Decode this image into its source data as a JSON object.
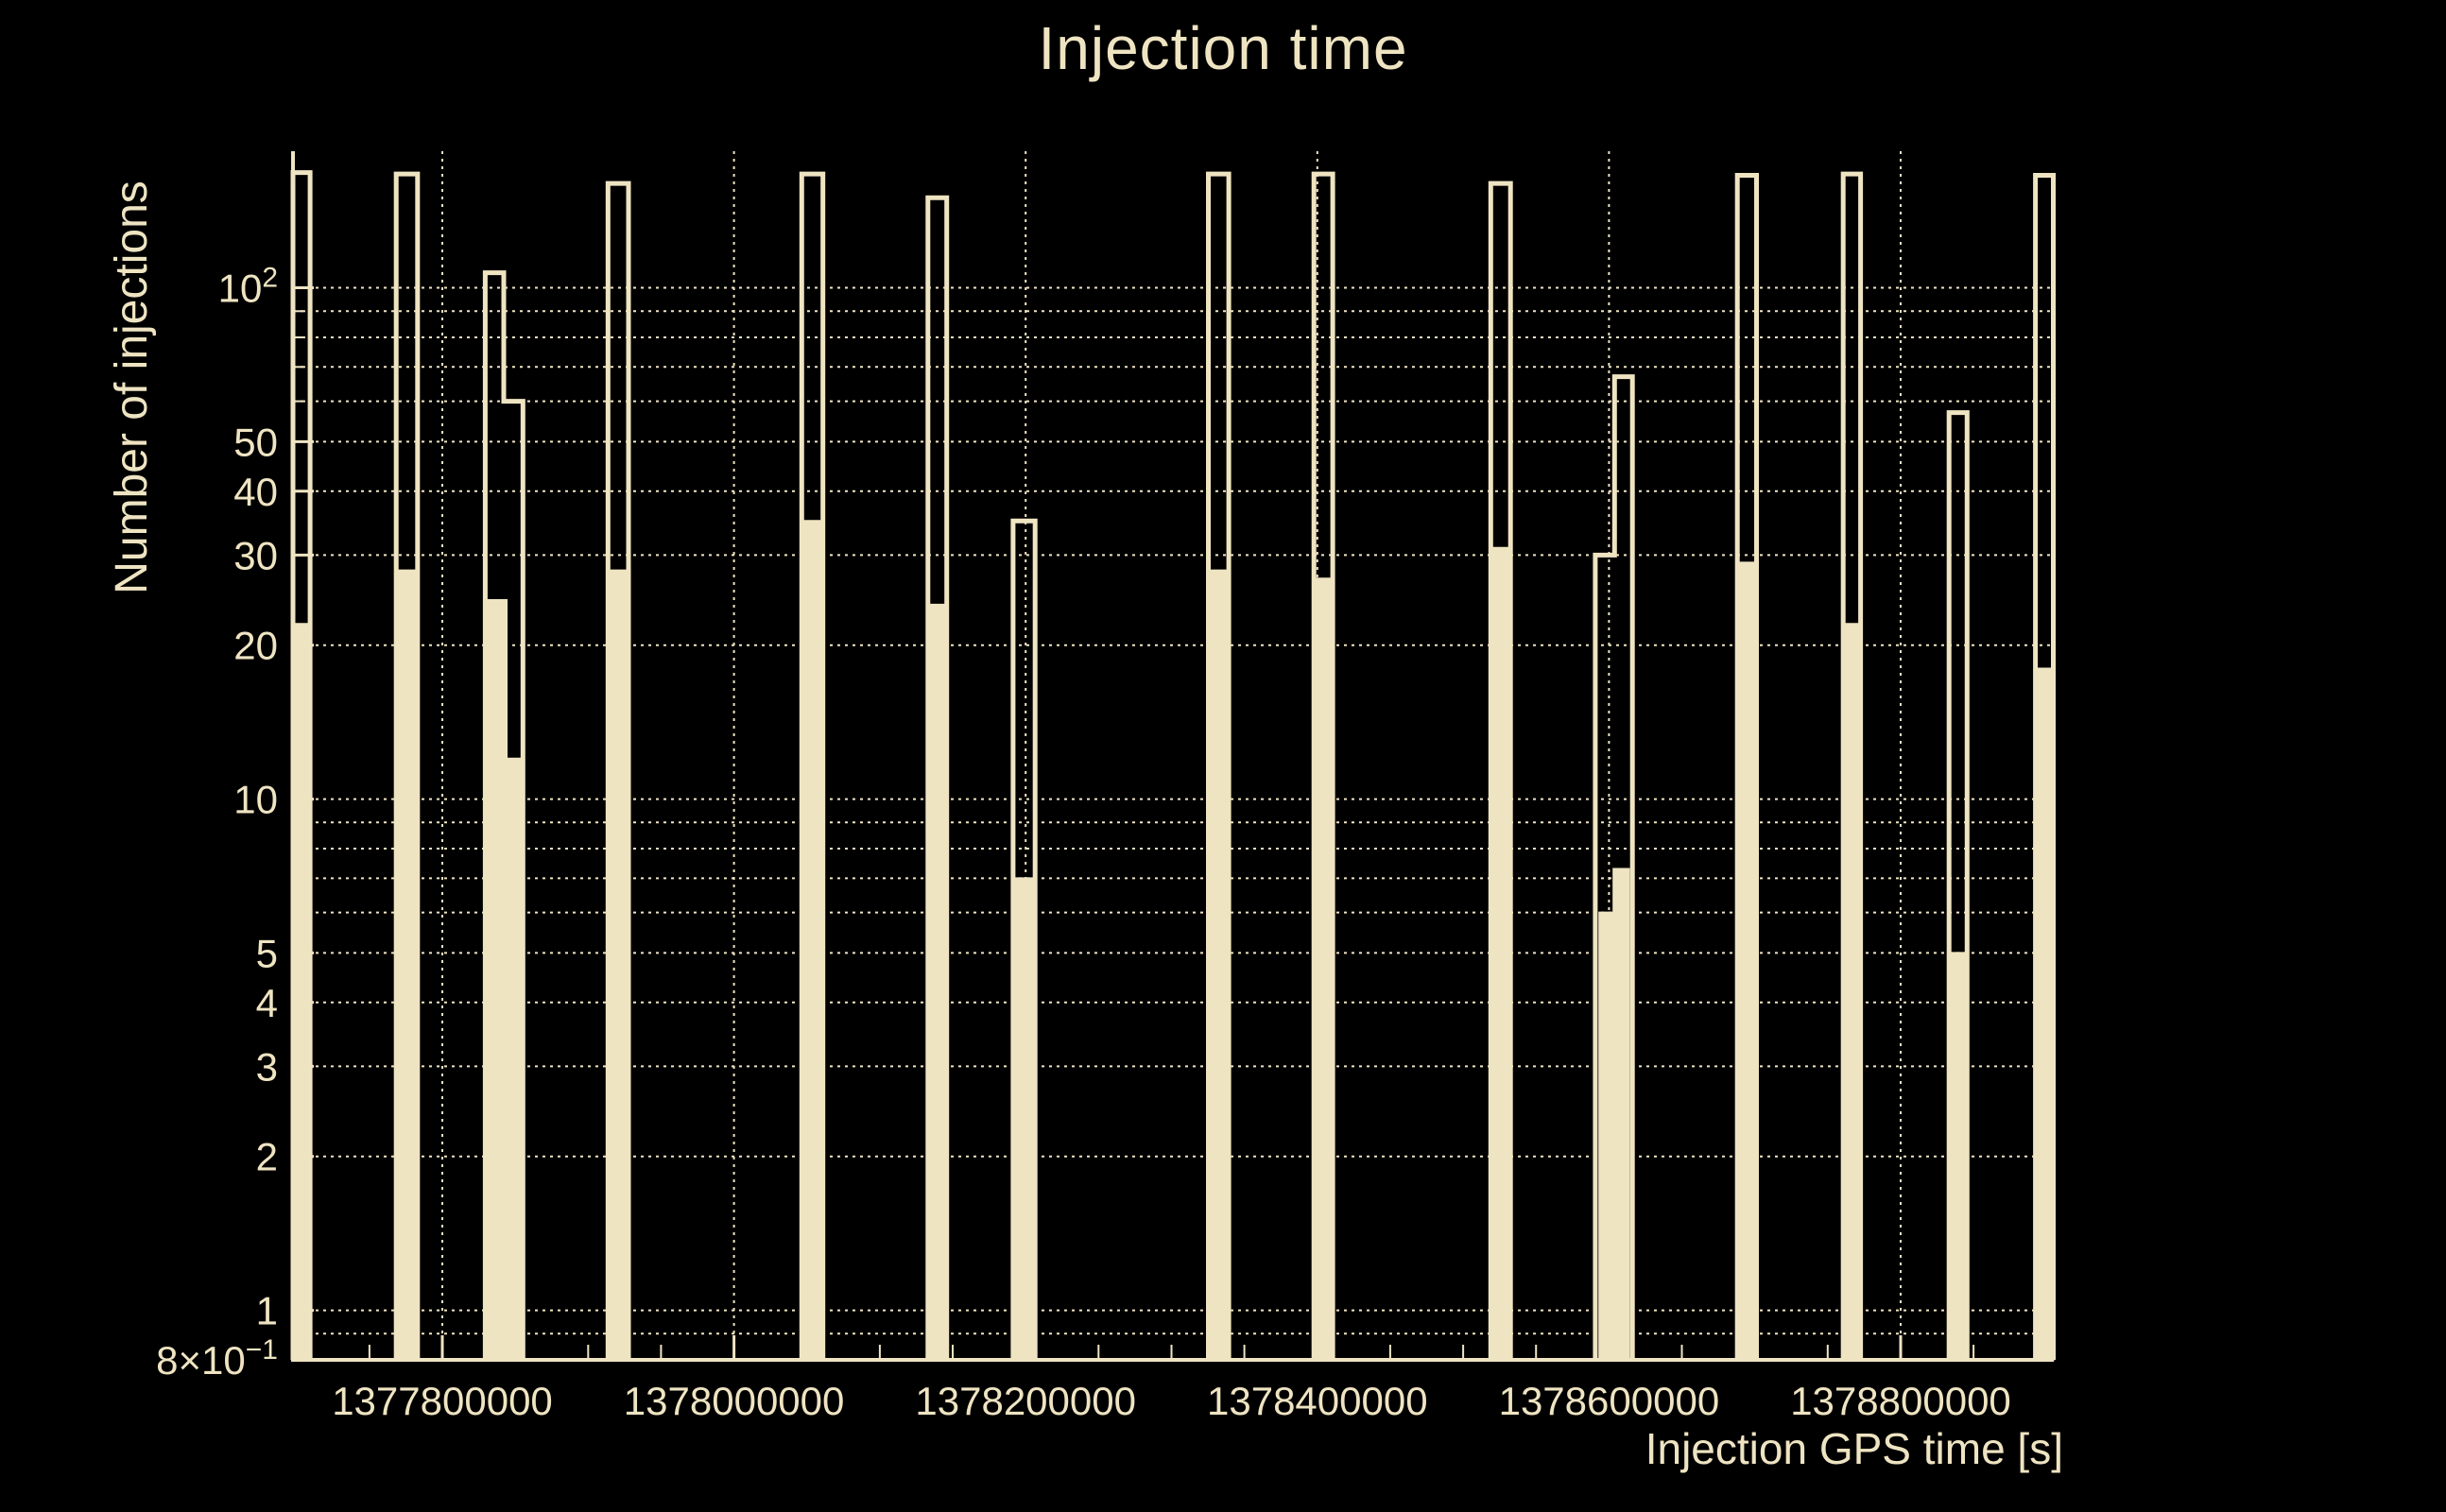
{
  "page": {
    "background": "#000000",
    "accent": "#EFE4C2"
  },
  "chart_data": {
    "type": "bar",
    "subtype": "step-histogram-log-y",
    "title": "Injection time",
    "xlabel": "Injection GPS time [s]",
    "ylabel": "Number of injections",
    "legend": null,
    "x_axis": {
      "min": 1377697600,
      "max": 1378905000,
      "minor_tick_step": 50000,
      "grid": "dotted",
      "major_ticks": [
        {
          "value": 1377800000,
          "label": "1377800000"
        },
        {
          "value": 1378000000,
          "label": "1378000000"
        },
        {
          "value": 1378200000,
          "label": "1378200000"
        },
        {
          "value": 1378400000,
          "label": "1378400000"
        },
        {
          "value": 1378600000,
          "label": "1378600000"
        },
        {
          "value": 1378800000,
          "label": "1378800000"
        }
      ]
    },
    "y_axis": {
      "scale": "log",
      "min": 0.8,
      "max": 185,
      "grid": "dotted",
      "grid_values": [
        0.9,
        1,
        2,
        3,
        4,
        5,
        6,
        7,
        8,
        9,
        10,
        20,
        30,
        40,
        50,
        60,
        70,
        80,
        90,
        100
      ],
      "ticks": [
        {
          "value": 100,
          "base": "10",
          "sup": "2"
        },
        {
          "value": 50,
          "base": "50"
        },
        {
          "value": 40,
          "base": "40"
        },
        {
          "value": 30,
          "base": "30"
        },
        {
          "value": 20,
          "base": "20"
        },
        {
          "value": 10,
          "base": "10"
        },
        {
          "value": 5,
          "base": "5"
        },
        {
          "value": 4,
          "base": "4"
        },
        {
          "value": 3,
          "base": "3"
        },
        {
          "value": 2,
          "base": "2"
        },
        {
          "value": 1,
          "base": "1"
        },
        {
          "value": 0.8,
          "base": "8×10",
          "sup": "−1"
        }
      ]
    },
    "series": [
      {
        "name": "injections-outline-histogram",
        "style": "outline",
        "segments": [
          {
            "x0": 1377697600,
            "x1": 1377709300,
            "y": 168
          },
          {
            "x0": 1377768400,
            "x1": 1377783000,
            "y": 167
          },
          {
            "x0": 1377829400,
            "x1": 1377842100,
            "y": 107
          },
          {
            "x0": 1377842100,
            "x1": 1377855300,
            "y": 60
          },
          {
            "x0": 1377913600,
            "x1": 1377927700,
            "y": 160
          },
          {
            "x0": 1378046500,
            "x1": 1378061000,
            "y": 167
          },
          {
            "x0": 1378133000,
            "x1": 1378145900,
            "y": 150
          },
          {
            "x0": 1378191400,
            "x1": 1378206500,
            "y": 35
          },
          {
            "x0": 1378325300,
            "x1": 1378339300,
            "y": 167
          },
          {
            "x0": 1378397700,
            "x1": 1378410600,
            "y": 167
          },
          {
            "x0": 1378518900,
            "x1": 1378532500,
            "y": 160
          },
          {
            "x0": 1378590600,
            "x1": 1378603800,
            "y": 30
          },
          {
            "x0": 1378603800,
            "x1": 1378616100,
            "y": 67
          },
          {
            "x0": 1378688000,
            "x1": 1378701200,
            "y": 166
          },
          {
            "x0": 1378760600,
            "x1": 1378772500,
            "y": 167
          },
          {
            "x0": 1378833200,
            "x1": 1378845600,
            "y": 57
          },
          {
            "x0": 1378892400,
            "x1": 1378904700,
            "y": 166
          }
        ]
      },
      {
        "name": "injections-filled-histogram",
        "style": "filled",
        "segments": [
          {
            "x0": 1377697600,
            "x1": 1377709300,
            "y": 22
          },
          {
            "x0": 1377768400,
            "x1": 1377783000,
            "y": 28
          },
          {
            "x0": 1377829400,
            "x1": 1377844100,
            "y": 24.5
          },
          {
            "x0": 1377844100,
            "x1": 1377855300,
            "y": 12
          },
          {
            "x0": 1377913600,
            "x1": 1377927700,
            "y": 28
          },
          {
            "x0": 1378046500,
            "x1": 1378061000,
            "y": 35
          },
          {
            "x0": 1378133000,
            "x1": 1378145900,
            "y": 24
          },
          {
            "x0": 1378191400,
            "x1": 1378206500,
            "y": 7
          },
          {
            "x0": 1378325300,
            "x1": 1378339300,
            "y": 28
          },
          {
            "x0": 1378397700,
            "x1": 1378410600,
            "y": 27
          },
          {
            "x0": 1378518900,
            "x1": 1378532500,
            "y": 31
          },
          {
            "x0": 1378593400,
            "x1": 1378603100,
            "y": 6
          },
          {
            "x0": 1378603100,
            "x1": 1378613700,
            "y": 7.3
          },
          {
            "x0": 1378688000,
            "x1": 1378701200,
            "y": 29
          },
          {
            "x0": 1378760600,
            "x1": 1378772500,
            "y": 22
          },
          {
            "x0": 1378833200,
            "x1": 1378845600,
            "y": 5
          },
          {
            "x0": 1378892400,
            "x1": 1378904700,
            "y": 18
          }
        ]
      }
    ]
  }
}
